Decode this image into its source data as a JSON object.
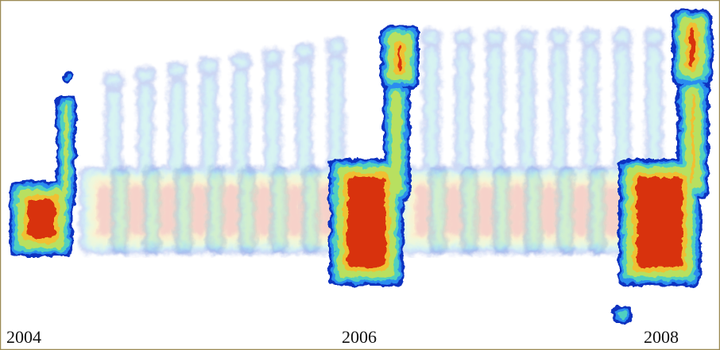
{
  "labels": [
    "2004",
    "2006",
    "2008"
  ]
}
